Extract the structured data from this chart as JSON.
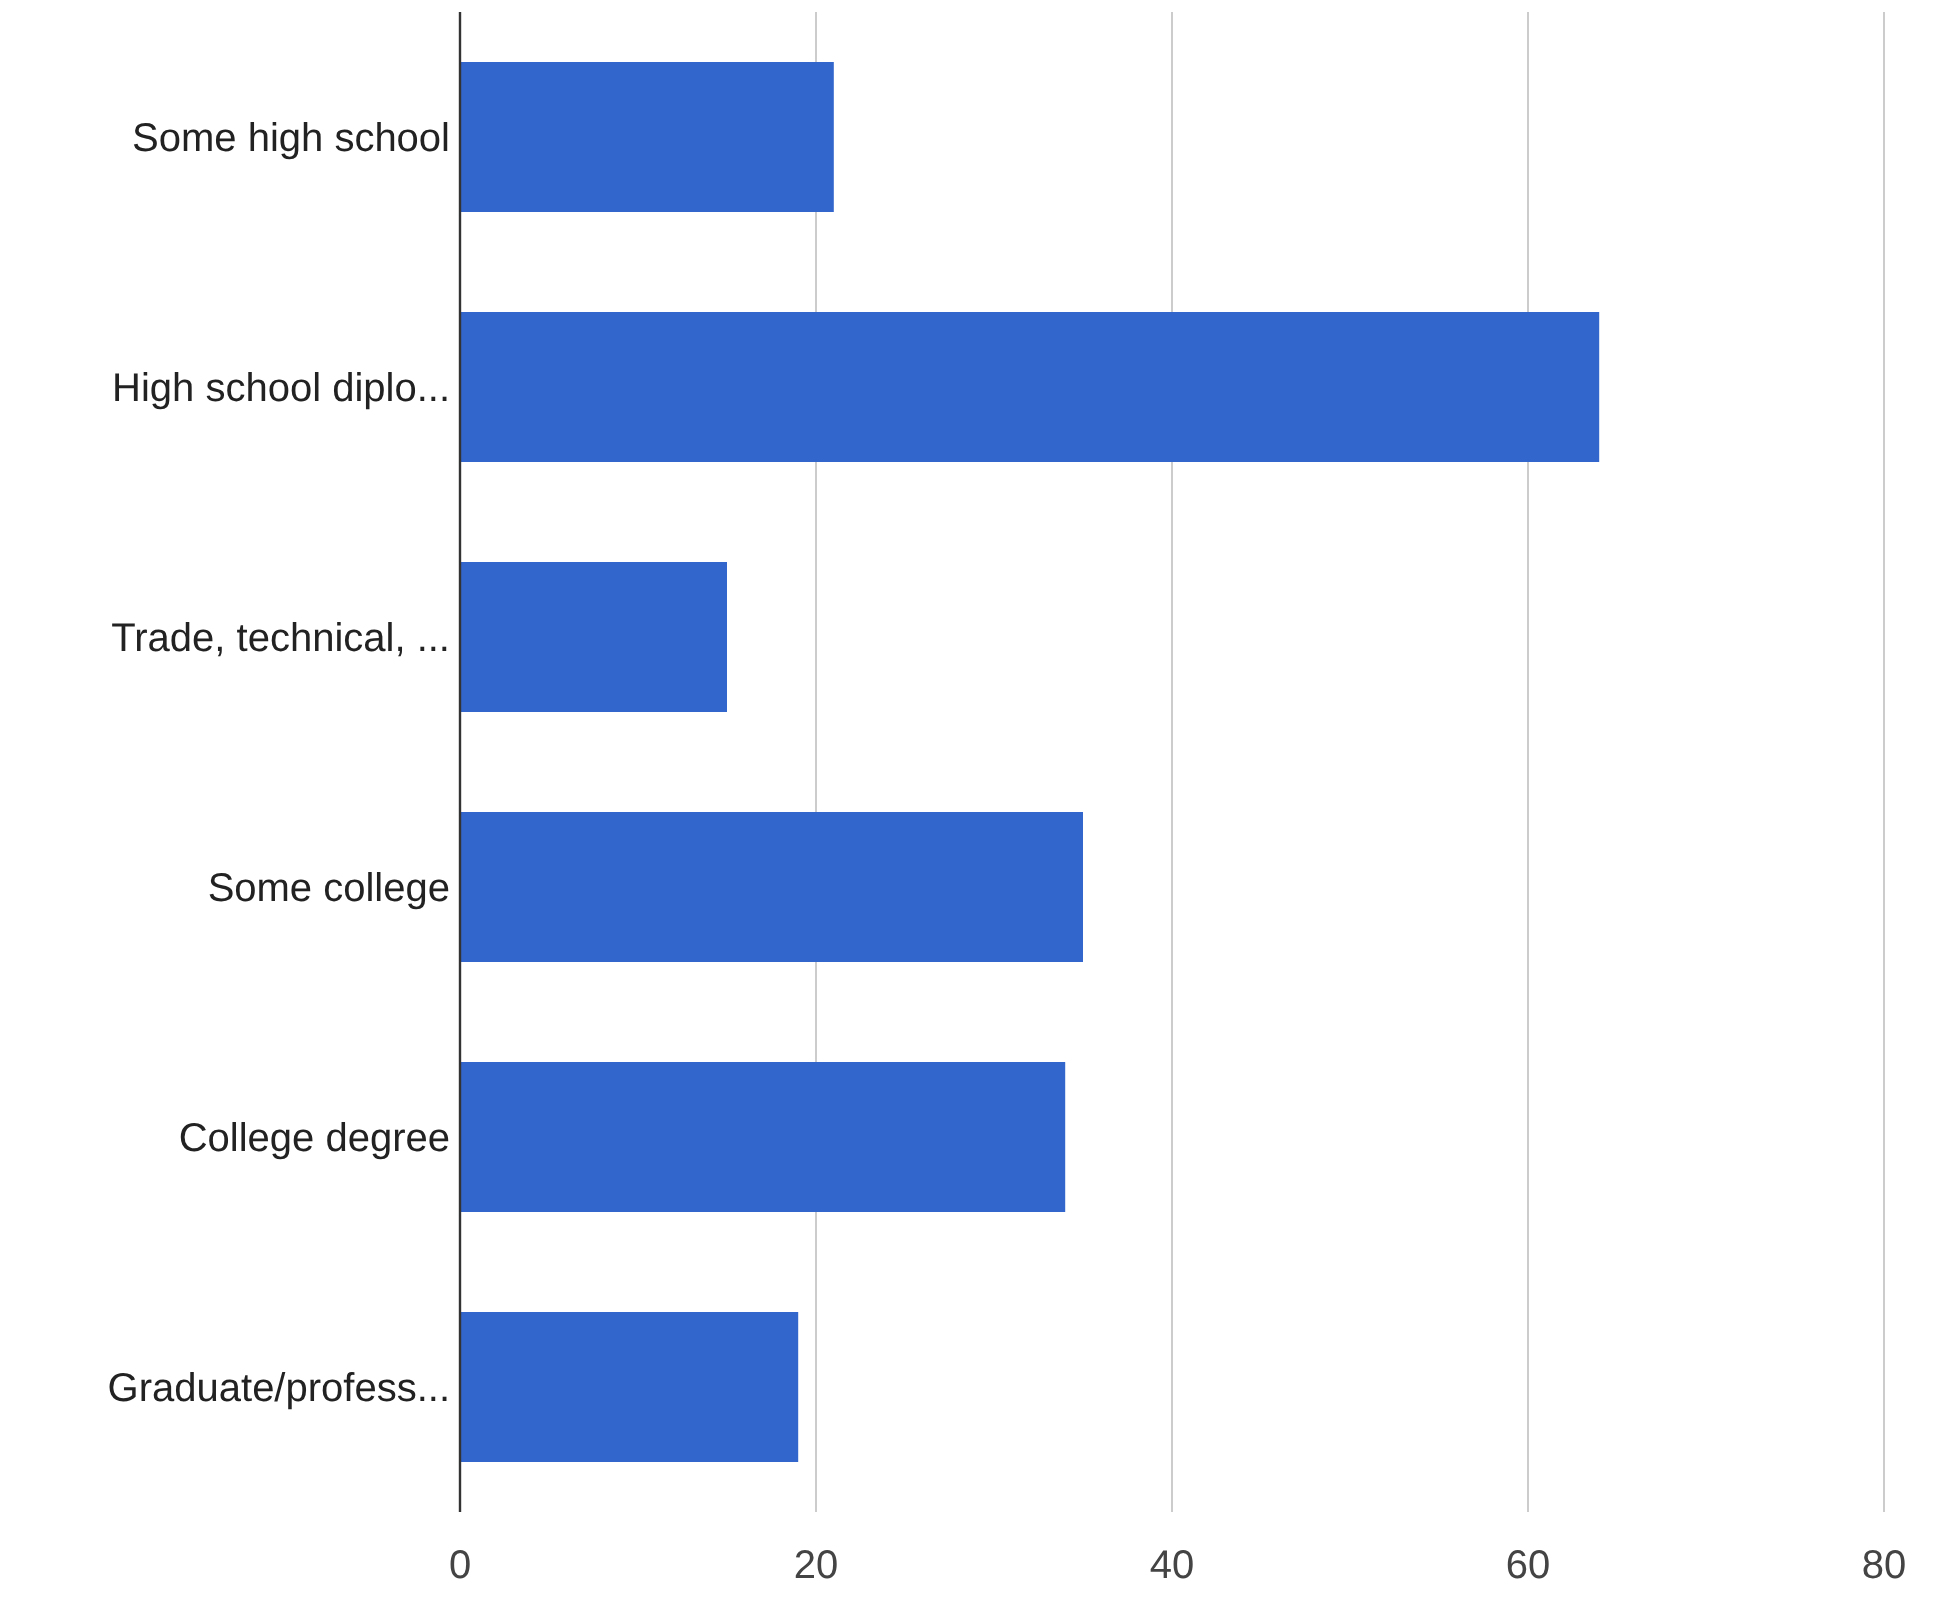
{
  "chart_data": {
    "type": "bar",
    "orientation": "horizontal",
    "categories": [
      "Some high school",
      "High school diplo...",
      "Trade, technical, ...",
      "Some college",
      "College degree",
      "Graduate/profess..."
    ],
    "values": [
      21,
      64,
      15,
      35,
      34,
      19
    ],
    "color": "#3366cc",
    "xlim": [
      0,
      80
    ],
    "xticks": [
      0,
      20,
      40,
      60,
      80
    ],
    "grid": "x"
  }
}
